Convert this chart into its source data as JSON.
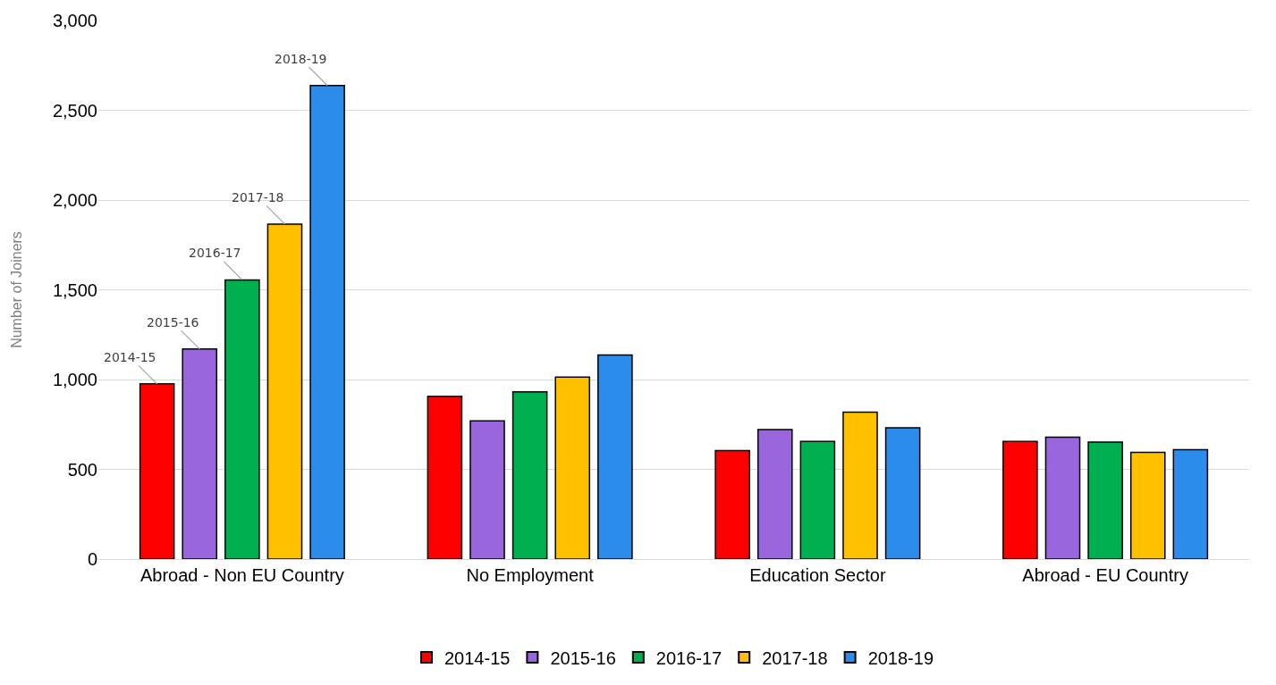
{
  "chart_data": {
    "type": "bar",
    "ylabel": "Number of Joiners",
    "categories": [
      "Abroad - Non EU Country",
      "No Employment",
      "Education Sector",
      "Abroad - EU Country"
    ],
    "series": [
      {
        "name": "2014-15",
        "color": "#ff0000",
        "values": [
          976,
          907,
          604,
          655
        ]
      },
      {
        "name": "2015-16",
        "color": "#9966dd",
        "values": [
          1170,
          770,
          721,
          679
        ]
      },
      {
        "name": "2016-17",
        "color": "#00b050",
        "values": [
          1555,
          932,
          656,
          652
        ]
      },
      {
        "name": "2017-18",
        "color": "#ffc000",
        "values": [
          1866,
          1014,
          819,
          595
        ]
      },
      {
        "name": "2018-19",
        "color": "#2b8ceb",
        "values": [
          2638,
          1137,
          731,
          609
        ]
      }
    ],
    "ylim": [
      0,
      3000
    ],
    "yticks": [
      0,
      500,
      {
        "value": 1000,
        "label": "1,000"
      },
      {
        "value": 1500,
        "label": "1,500"
      },
      {
        "value": 2000,
        "label": "2,000"
      },
      {
        "value": 2500,
        "label": "2,500"
      },
      {
        "value": 3000,
        "label": "3,000"
      }
    ],
    "grid": "y",
    "legend": "bottom"
  }
}
